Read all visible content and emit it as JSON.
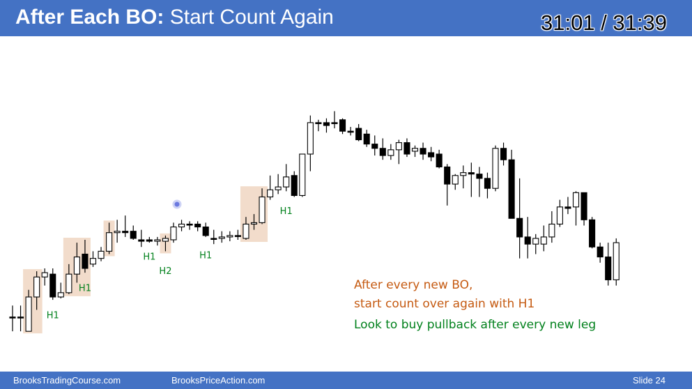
{
  "slide": {
    "title_bold": "After Each BO:",
    "title_rest": "Start Count Again",
    "timer": "31:01 / 31:39",
    "footer_left": "BrooksTradingCourse.com",
    "footer_center": "BrooksPriceAction.com",
    "footer_right": "Slide  24",
    "notes": [
      "After every new BO,",
      "start count over again with H1",
      "Look to buy pullback after every new leg"
    ]
  },
  "colors": {
    "header": "#4472c4",
    "highlight": "#f2dccb",
    "label_green": "#00801b",
    "note_orange": "#c55a11"
  },
  "chart_data": {
    "type": "candlestick",
    "grid": false,
    "bars": [
      {
        "i": 0,
        "o": 94,
        "h": 86,
        "l": 104,
        "c": 94
      },
      {
        "i": 1,
        "o": 94,
        "h": 86,
        "l": 104,
        "c": 94
      },
      {
        "i": 2,
        "o": 104,
        "h": 75,
        "l": 104,
        "c": 80
      },
      {
        "i": 3,
        "o": 80,
        "h": 62,
        "l": 89,
        "c": 66
      },
      {
        "i": 4,
        "o": 66,
        "h": 60,
        "l": 72,
        "c": 63
      },
      {
        "i": 5,
        "o": 64,
        "h": 60,
        "l": 82,
        "c": 80
      },
      {
        "i": 6,
        "o": 80,
        "h": 70,
        "l": 81,
        "c": 77
      },
      {
        "i": 7,
        "o": 77,
        "h": 57,
        "l": 78,
        "c": 64
      },
      {
        "i": 8,
        "o": 64,
        "h": 42,
        "l": 70,
        "c": 52
      },
      {
        "i": 9,
        "o": 50,
        "h": 40,
        "l": 63,
        "c": 60
      },
      {
        "i": 10,
        "o": 57,
        "h": 48,
        "l": 59,
        "c": 53
      },
      {
        "i": 11,
        "o": 53,
        "h": 45,
        "l": 55,
        "c": 48
      },
      {
        "i": 12,
        "o": 48,
        "h": 28,
        "l": 50,
        "c": 35
      },
      {
        "i": 13,
        "o": 35,
        "h": 26,
        "l": 42,
        "c": 34
      },
      {
        "i": 14,
        "o": 34,
        "h": 23,
        "l": 38,
        "c": 35
      },
      {
        "i": 15,
        "o": 34,
        "h": 30,
        "l": 40,
        "c": 39
      },
      {
        "i": 16,
        "o": 40,
        "h": 33,
        "l": 45,
        "c": 41
      },
      {
        "i": 17,
        "o": 40,
        "h": 38,
        "l": 42,
        "c": 41
      },
      {
        "i": 18,
        "o": 41,
        "h": 38,
        "l": 44,
        "c": 40
      },
      {
        "i": 19,
        "o": 41,
        "h": 37,
        "l": 48,
        "c": 39
      },
      {
        "i": 20,
        "o": 40,
        "h": 28,
        "l": 42,
        "c": 31
      },
      {
        "i": 21,
        "o": 31,
        "h": 26,
        "l": 34,
        "c": 29
      },
      {
        "i": 22,
        "o": 29,
        "h": 27,
        "l": 33,
        "c": 29
      },
      {
        "i": 23,
        "o": 29,
        "h": 27,
        "l": 34,
        "c": 31
      },
      {
        "i": 24,
        "o": 31,
        "h": 28,
        "l": 38,
        "c": 37
      },
      {
        "i": 25,
        "o": 39,
        "h": 33,
        "l": 43,
        "c": 39
      },
      {
        "i": 26,
        "o": 39,
        "h": 34,
        "l": 42,
        "c": 38
      },
      {
        "i": 27,
        "o": 38,
        "h": 34,
        "l": 41,
        "c": 37
      },
      {
        "i": 28,
        "o": 37,
        "h": 33,
        "l": 40,
        "c": 37
      },
      {
        "i": 29,
        "o": 39,
        "h": 24,
        "l": 40,
        "c": 29
      },
      {
        "i": 30,
        "o": 29,
        "h": 22,
        "l": 33,
        "c": 28
      },
      {
        "i": 31,
        "o": 28,
        "h": 4,
        "l": 29,
        "c": 10
      },
      {
        "i": 32,
        "o": 10,
        "h": -5,
        "l": 12,
        "c": 5
      },
      {
        "i": 33,
        "o": 5,
        "h": -6,
        "l": 8,
        "c": 3
      },
      {
        "i": 34,
        "o": 3,
        "h": -13,
        "l": 6,
        "c": -4
      },
      {
        "i": 35,
        "o": -5,
        "h": -8,
        "l": 10,
        "c": 9
      },
      {
        "i": 36,
        "o": 9,
        "h": -20,
        "l": 10,
        "c": -20
      },
      {
        "i": 37,
        "o": -20,
        "h": -47,
        "l": -8,
        "c": -42
      },
      {
        "i": 38,
        "o": -42,
        "h": -44,
        "l": -36,
        "c": -42
      },
      {
        "i": 39,
        "o": -42,
        "h": -45,
        "l": -35,
        "c": -40
      },
      {
        "i": 40,
        "o": -42,
        "h": -50,
        "l": -38,
        "c": -42
      },
      {
        "i": 41,
        "o": -44,
        "h": -45,
        "l": -34,
        "c": -36
      },
      {
        "i": 42,
        "o": -36,
        "h": -39,
        "l": -33,
        "c": -36
      },
      {
        "i": 43,
        "o": -38,
        "h": -41,
        "l": -29,
        "c": -30
      },
      {
        "i": 44,
        "o": -34,
        "h": -37,
        "l": -25,
        "c": -27
      },
      {
        "i": 45,
        "o": -27,
        "h": -33,
        "l": -19,
        "c": -24
      },
      {
        "i": 46,
        "o": -24,
        "h": -31,
        "l": -16,
        "c": -19
      },
      {
        "i": 47,
        "o": -19,
        "h": -27,
        "l": -16,
        "c": -23
      },
      {
        "i": 48,
        "o": -23,
        "h": -30,
        "l": -13,
        "c": -28
      },
      {
        "i": 49,
        "o": -28,
        "h": -31,
        "l": -18,
        "c": -20
      },
      {
        "i": 50,
        "o": -22,
        "h": -26,
        "l": -18,
        "c": -24
      },
      {
        "i": 51,
        "o": -24,
        "h": -28,
        "l": -16,
        "c": -20
      },
      {
        "i": 52,
        "o": -21,
        "h": -25,
        "l": -15,
        "c": -18
      },
      {
        "i": 53,
        "o": -20,
        "h": -23,
        "l": -10,
        "c": -11
      },
      {
        "i": 54,
        "o": -11,
        "h": -13,
        "l": 16,
        "c": 1
      },
      {
        "i": 55,
        "o": 1,
        "h": -6,
        "l": 5,
        "c": -5
      },
      {
        "i": 56,
        "o": -5,
        "h": -12,
        "l": 4,
        "c": -7
      },
      {
        "i": 57,
        "o": -7,
        "h": -14,
        "l": 10,
        "c": -6
      },
      {
        "i": 58,
        "o": -6,
        "h": -11,
        "l": 10,
        "c": -3
      },
      {
        "i": 59,
        "o": -3,
        "h": -7,
        "l": 11,
        "c": 4
      },
      {
        "i": 60,
        "o": 4,
        "h": -26,
        "l": 6,
        "c": -24
      },
      {
        "i": 61,
        "o": -24,
        "h": -28,
        "l": -12,
        "c": -16
      },
      {
        "i": 62,
        "o": -16,
        "h": -23,
        "l": -2,
        "c": 25
      },
      {
        "i": 63,
        "o": 25,
        "h": -3,
        "l": 53,
        "c": 38
      },
      {
        "i": 64,
        "o": 38,
        "h": 24,
        "l": 53,
        "c": 43
      },
      {
        "i": 65,
        "o": 43,
        "h": 36,
        "l": 50,
        "c": 39
      },
      {
        "i": 66,
        "o": 43,
        "h": 30,
        "l": 48,
        "c": 38
      },
      {
        "i": 67,
        "o": 38,
        "h": 20,
        "l": 42,
        "c": 29
      },
      {
        "i": 68,
        "o": 29,
        "h": 12,
        "l": 31,
        "c": 17
      },
      {
        "i": 69,
        "o": 17,
        "h": 10,
        "l": 22,
        "c": 18
      },
      {
        "i": 70,
        "o": 17,
        "h": 6,
        "l": 30,
        "c": 7
      },
      {
        "i": 71,
        "o": 7,
        "h": 12,
        "l": 30,
        "c": 26
      },
      {
        "i": 72,
        "o": 26,
        "h": 24,
        "l": 46,
        "c": 45
      },
      {
        "i": 73,
        "o": 45,
        "h": 42,
        "l": 56,
        "c": 52
      },
      {
        "i": 74,
        "o": 52,
        "h": 42,
        "l": 72,
        "c": 68
      },
      {
        "i": 75,
        "o": 68,
        "h": 39,
        "l": 72,
        "c": 42
      }
    ],
    "highlights": [
      {
        "from": 2,
        "to": 3
      },
      {
        "from": 7,
        "to": 9
      },
      {
        "from": 12,
        "to": 12
      },
      {
        "from": 19,
        "to": 19
      },
      {
        "from": 29,
        "to": 31
      }
    ],
    "labels": [
      {
        "text": "H1",
        "bar": 5,
        "price": 89
      },
      {
        "text": "H1",
        "bar": 9,
        "price": 70
      },
      {
        "text": "H1",
        "bar": 17,
        "price": 48
      },
      {
        "text": "H2",
        "bar": 19,
        "price": 58
      },
      {
        "text": "H1",
        "bar": 24,
        "price": 47
      },
      {
        "text": "H1",
        "bar": 34,
        "price": 16
      }
    ]
  }
}
